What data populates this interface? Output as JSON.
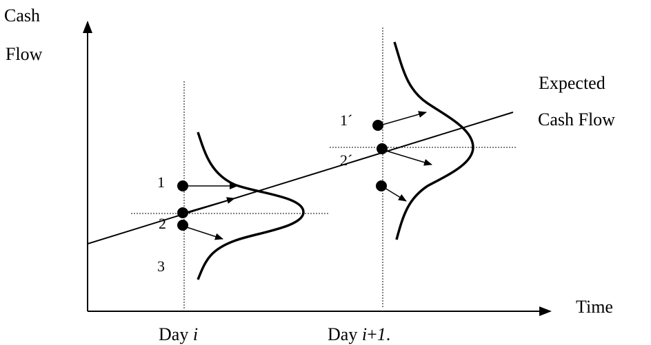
{
  "y_axis": {
    "line1": "Cash",
    "line2": "Flow"
  },
  "x_axis": {
    "label": "Time"
  },
  "trend": {
    "line1": "Expected",
    "line2": "Cash Flow"
  },
  "days": {
    "day_i": {
      "prefix": "Day ",
      "var": "i"
    },
    "day_i1": {
      "prefix": "Day ",
      "var": "i",
      "plus": "+",
      "one": "1",
      "suffix": "."
    }
  },
  "points": {
    "p1": "1",
    "p2": "2",
    "p3": "3",
    "p1_prime": "1´",
    "p2_prime": "2´"
  }
}
